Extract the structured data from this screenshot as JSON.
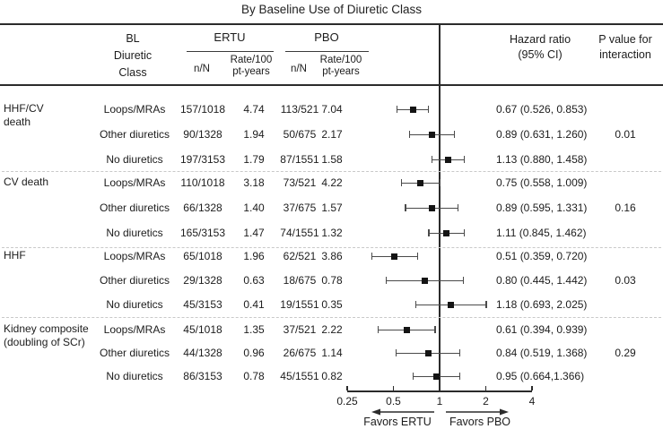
{
  "header": {
    "bl_class_lines": [
      "BL",
      "Diuretic",
      "Class"
    ],
    "ertu": "ERTU",
    "pbo": "PBO",
    "n_N": "n/N",
    "rate_lines": [
      "Rate/100",
      "pt-years"
    ],
    "hazard_ratio_lines": [
      "Hazard ratio",
      "(95% CI)"
    ],
    "p_value_lines": [
      "P value for",
      "interaction"
    ]
  },
  "chart_data": {
    "type": "forest",
    "title": "By Baseline Use of Diuretic Class",
    "scale": "log2",
    "x_range": [
      0.25,
      4
    ],
    "reference": 1,
    "axis": {
      "ticks": [
        "0.25",
        "0.5",
        "1",
        "2",
        "4"
      ],
      "tick_values": [
        0.25,
        0.5,
        1,
        2,
        4
      ],
      "favors_ertu": "Favors ERTU",
      "favors_pbo": "Favors PBO"
    },
    "groups": [
      {
        "outcome": "HHF/CV death",
        "outcome_lines": [
          "HHF/CV",
          "death"
        ],
        "p_value": "0.01",
        "rows": [
          {
            "bl_class": "Loops/MRAs",
            "ertu_nN": "157/1018",
            "ertu_rate": "4.74",
            "pbo_nN": "113/521",
            "pbo_rate": "7.04",
            "hr": 0.67,
            "ci_low": 0.526,
            "ci_high": 0.853,
            "hr_text": "0.67 (0.526, 0.853)"
          },
          {
            "bl_class": "Other diuretics",
            "ertu_nN": "90/1328",
            "ertu_rate": "1.94",
            "pbo_nN": "50/675",
            "pbo_rate": "2.17",
            "hr": 0.89,
            "ci_low": 0.631,
            "ci_high": 1.26,
            "hr_text": "0.89 (0.631, 1.260)"
          },
          {
            "bl_class": "No diuretics",
            "ertu_nN": "197/3153",
            "ertu_rate": "1.79",
            "pbo_nN": "87/1551",
            "pbo_rate": "1.58",
            "hr": 1.13,
            "ci_low": 0.88,
            "ci_high": 1.458,
            "hr_text": "1.13 (0.880, 1.458)"
          }
        ]
      },
      {
        "outcome": "CV death",
        "outcome_lines": [
          "CV death"
        ],
        "p_value": "0.16",
        "rows": [
          {
            "bl_class": "Loops/MRAs",
            "ertu_nN": "110/1018",
            "ertu_rate": "3.18",
            "pbo_nN": "73/521",
            "pbo_rate": "4.22",
            "hr": 0.75,
            "ci_low": 0.558,
            "ci_high": 1.009,
            "hr_text": "0.75 (0.558, 1.009)"
          },
          {
            "bl_class": "Other diuretics",
            "ertu_nN": "66/1328",
            "ertu_rate": "1.40",
            "pbo_nN": "37/675",
            "pbo_rate": "1.57",
            "hr": 0.89,
            "ci_low": 0.595,
            "ci_high": 1.331,
            "hr_text": "0.89 (0.595, 1.331)"
          },
          {
            "bl_class": "No diuretics",
            "ertu_nN": "165/3153",
            "ertu_rate": "1.47",
            "pbo_nN": "74/1551",
            "pbo_rate": "1.32",
            "hr": 1.11,
            "ci_low": 0.845,
            "ci_high": 1.462,
            "hr_text": "1.11 (0.845, 1.462)"
          }
        ]
      },
      {
        "outcome": "HHF",
        "outcome_lines": [
          "HHF"
        ],
        "p_value": "0.03",
        "rows": [
          {
            "bl_class": "Loops/MRAs",
            "ertu_nN": "65/1018",
            "ertu_rate": "1.96",
            "pbo_nN": "62/521",
            "pbo_rate": "3.86",
            "hr": 0.51,
            "ci_low": 0.359,
            "ci_high": 0.72,
            "hr_text": "0.51 (0.359, 0.720)"
          },
          {
            "bl_class": "Other diuretics",
            "ertu_nN": "29/1328",
            "ertu_rate": "0.63",
            "pbo_nN": "18/675",
            "pbo_rate": "0.78",
            "hr": 0.8,
            "ci_low": 0.445,
            "ci_high": 1.442,
            "hr_text": "0.80 (0.445, 1.442)"
          },
          {
            "bl_class": "No diuretics",
            "ertu_nN": "45/3153",
            "ertu_rate": "0.41",
            "pbo_nN": "19/1551",
            "pbo_rate": "0.35",
            "hr": 1.18,
            "ci_low": 0.693,
            "ci_high": 2.025,
            "hr_text": "1.18 (0.693, 2.025)"
          }
        ]
      },
      {
        "outcome": "Kidney composite (doubling of SCr)",
        "outcome_lines": [
          "Kidney composite",
          "(doubling of SCr)"
        ],
        "p_value": "0.29",
        "rows": [
          {
            "bl_class": "Loops/MRAs",
            "ertu_nN": "45/1018",
            "ertu_rate": "1.35",
            "pbo_nN": "37/521",
            "pbo_rate": "2.22",
            "hr": 0.61,
            "ci_low": 0.394,
            "ci_high": 0.939,
            "hr_text": "0.61 (0.394, 0.939)"
          },
          {
            "bl_class": "Other diuretics",
            "ertu_nN": "44/1328",
            "ertu_rate": "0.96",
            "pbo_nN": "26/675",
            "pbo_rate": "1.14",
            "hr": 0.84,
            "ci_low": 0.519,
            "ci_high": 1.368,
            "hr_text": "0.84 (0.519, 1.368)"
          },
          {
            "bl_class": "No diuretics",
            "ertu_nN": "86/3153",
            "ertu_rate": "0.78",
            "pbo_nN": "45/1551",
            "pbo_rate": "0.82",
            "hr": 0.95,
            "ci_low": 0.664,
            "ci_high": 1.366,
            "hr_text": "0.95 (0.664,1.366)"
          }
        ]
      }
    ]
  }
}
